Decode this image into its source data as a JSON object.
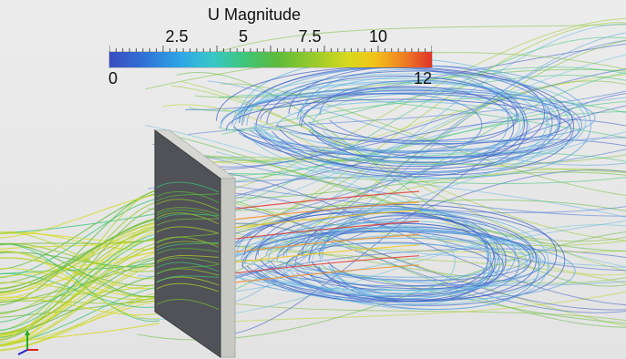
{
  "legend": {
    "title": "U Magnitude",
    "min_label": "0",
    "max_label": "12",
    "ticks": [
      "2.5",
      "5",
      "7.5",
      "10"
    ]
  },
  "colormap": {
    "low": "#3b4cc0",
    "mid": "#5dbb3b",
    "high": "#e0332a"
  },
  "scene": {
    "obstacle_face": "#4b4d52",
    "obstacle_edge": "#c8c8c4"
  },
  "axes_triad": {
    "x_color": "#d22",
    "y_color": "#2a2",
    "z_color": "#22c"
  }
}
